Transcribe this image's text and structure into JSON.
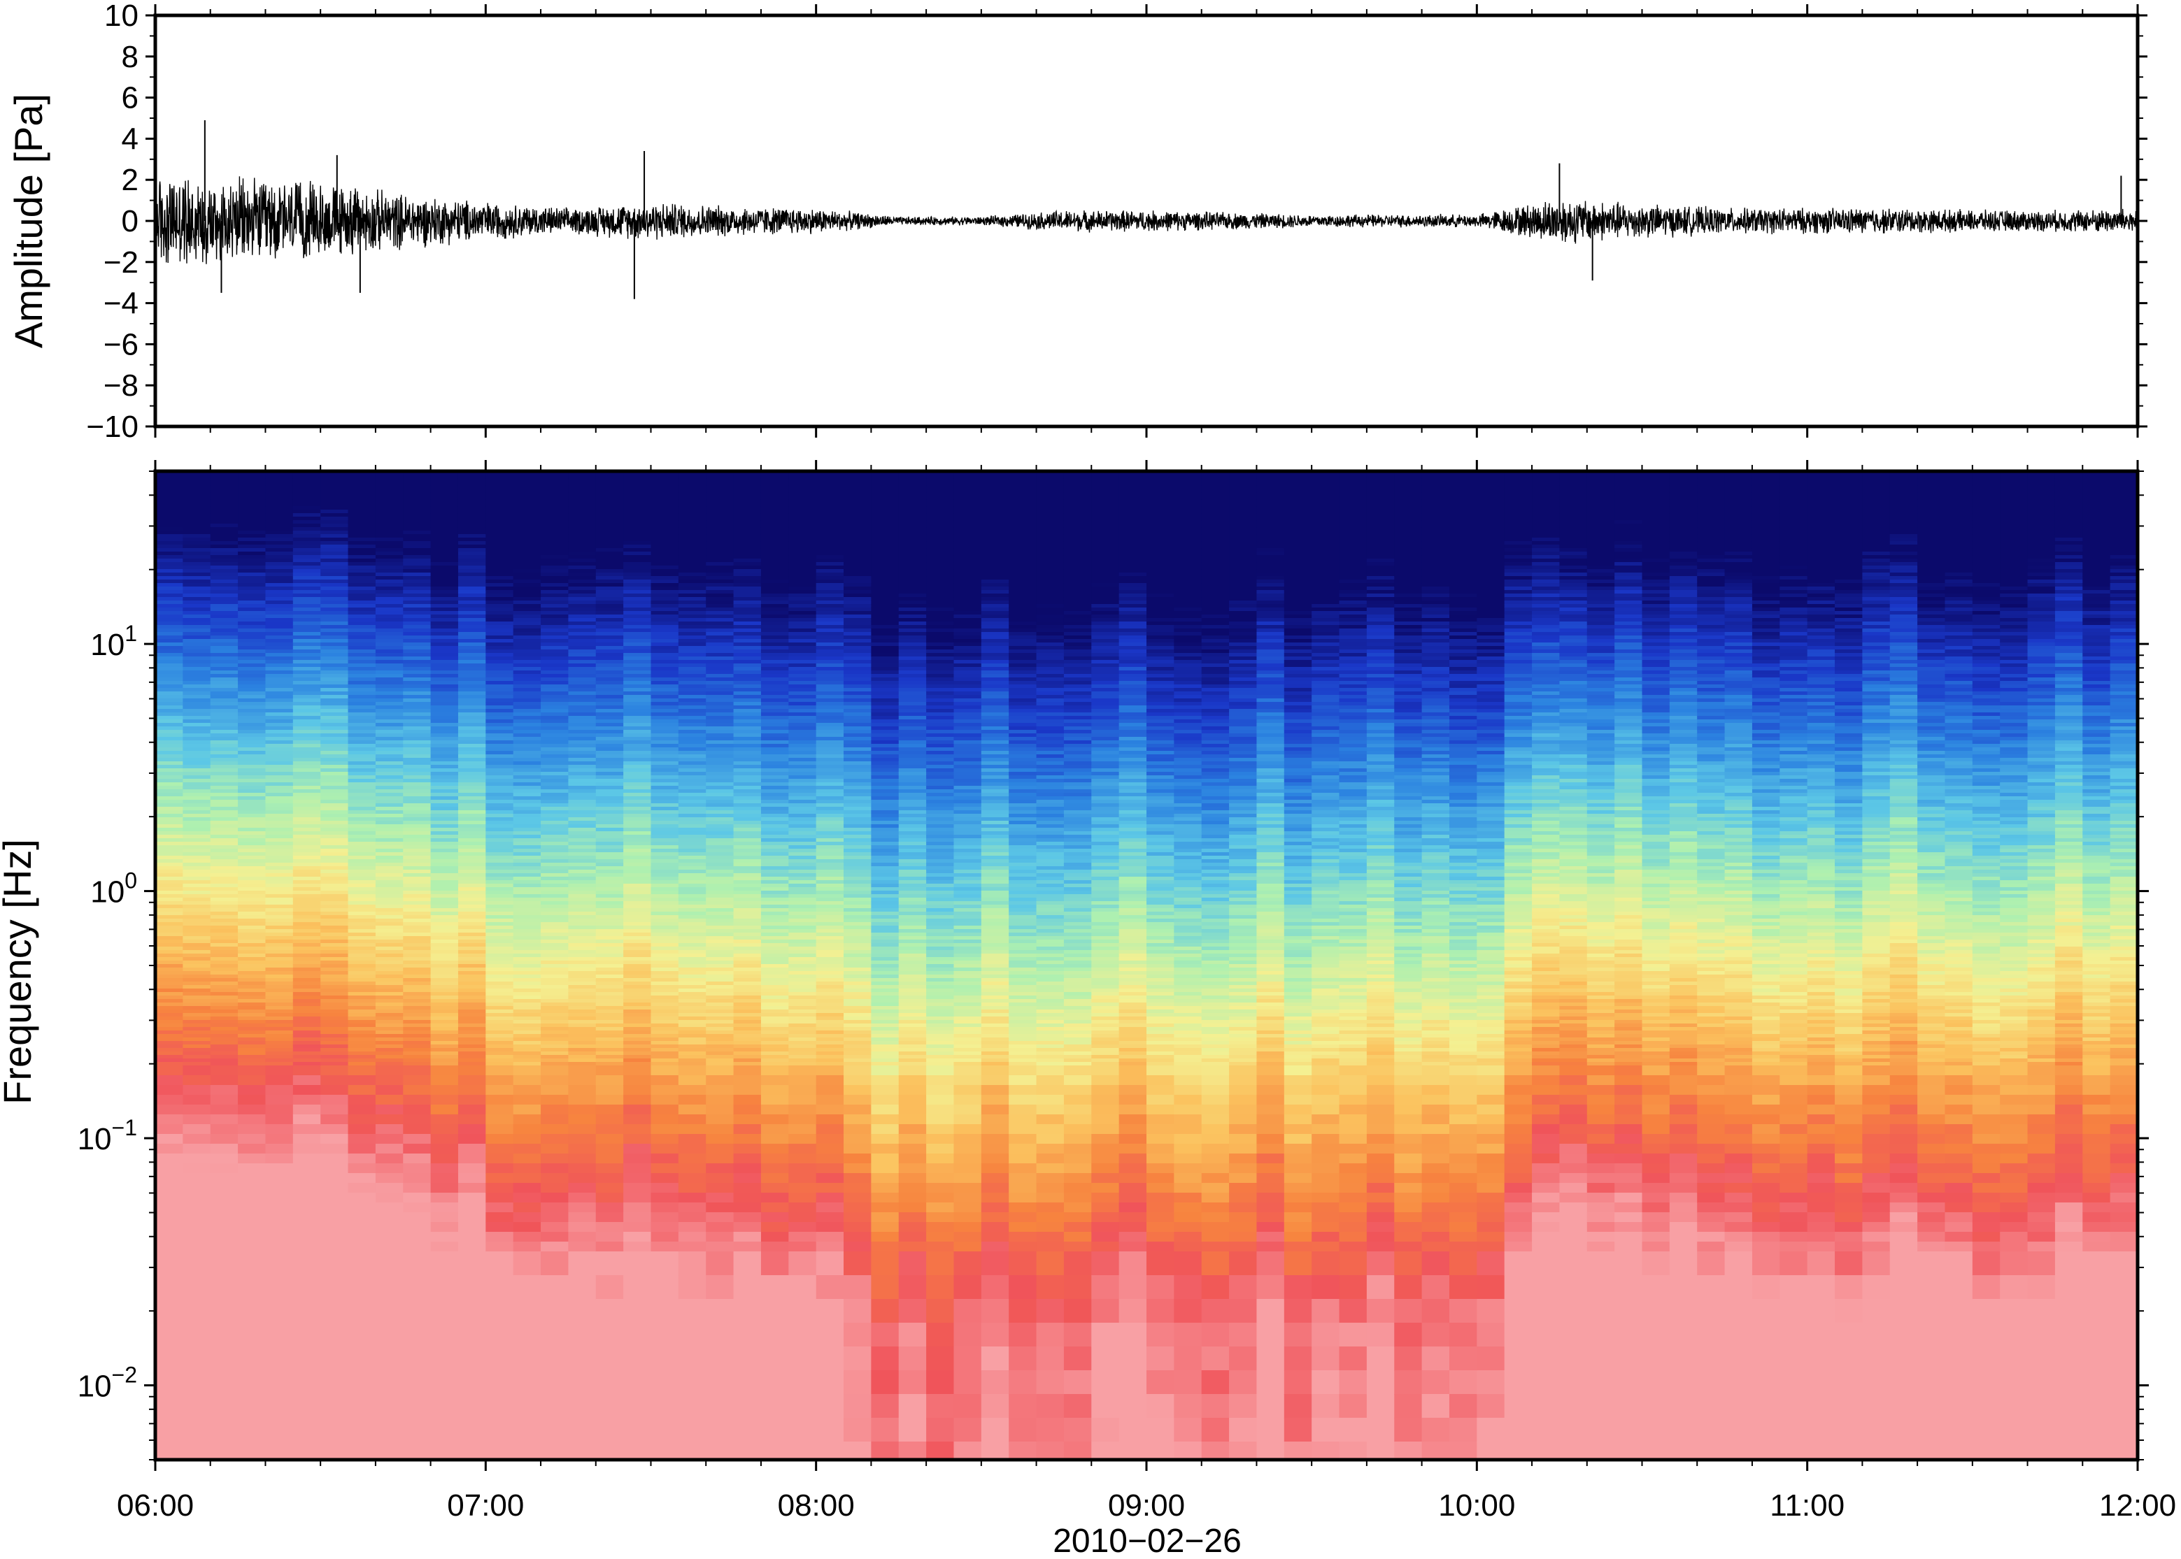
{
  "chart_data": [
    {
      "type": "line",
      "panel": "waveform",
      "ylabel": "Amplitude [Pa]",
      "ylim": [
        -10,
        10
      ],
      "y_ticks": [
        "10",
        "8",
        "6",
        "4",
        "2",
        "0",
        "−2",
        "−4",
        "−6",
        "−8",
        "−10"
      ],
      "y_tick_values": [
        10,
        8,
        6,
        4,
        2,
        0,
        -2,
        -4,
        -6,
        -8,
        -10
      ],
      "x_range": [
        "06:00",
        "12:00"
      ],
      "series": [
        {
          "x_hours": [
            6.0,
            6.25,
            6.5,
            6.75,
            7.0,
            7.25,
            7.5,
            7.75,
            8.0,
            8.25,
            8.5,
            8.75,
            9.0,
            9.25,
            9.5,
            9.75,
            10.0,
            10.25,
            10.5,
            10.75,
            11.0,
            11.25,
            11.5,
            11.75,
            12.0
          ],
          "envelope": [
            2.2,
            2.0,
            1.8,
            1.3,
            0.9,
            0.6,
            0.9,
            0.7,
            0.6,
            0.2,
            0.2,
            0.5,
            0.5,
            0.4,
            0.3,
            0.3,
            0.3,
            1.1,
            0.8,
            0.6,
            0.6,
            0.6,
            0.5,
            0.5,
            0.6
          ]
        }
      ],
      "spikes": [
        {
          "time": 6.15,
          "value": 4.9
        },
        {
          "time": 6.2,
          "value": -3.5
        },
        {
          "time": 6.55,
          "value": 3.2
        },
        {
          "time": 6.62,
          "value": -3.5
        },
        {
          "time": 7.45,
          "value": -3.8
        },
        {
          "time": 7.48,
          "value": 3.4
        },
        {
          "time": 10.25,
          "value": 2.8
        },
        {
          "time": 10.35,
          "value": -2.9
        },
        {
          "time": 11.95,
          "value": 2.2
        }
      ]
    },
    {
      "type": "heatmap",
      "panel": "spectrogram",
      "ylabel": "Frequency [Hz]",
      "yscale": "log",
      "ylim": [
        0.005,
        50
      ],
      "y_ticks": [
        {
          "base": "10",
          "exp": "1",
          "value": 10
        },
        {
          "base": "10",
          "exp": "0",
          "value": 1
        },
        {
          "base": "10",
          "exp": "−1",
          "value": 0.1
        },
        {
          "base": "10",
          "exp": "−2",
          "value": 0.01
        }
      ],
      "x_ticks": [
        "06:00",
        "07:00",
        "08:00",
        "09:00",
        "10:00",
        "11:00",
        "12:00"
      ],
      "x_tick_hours": [
        6,
        7,
        8,
        9,
        10,
        11,
        12
      ],
      "x_date_label": "2010−02−26",
      "colormap": [
        "#0b0a6b",
        "#1a37c8",
        "#2b82e0",
        "#5cc7e6",
        "#aef0b0",
        "#f4f092",
        "#fbc25e",
        "#f7843f",
        "#f0545a",
        "#f8a0a4"
      ],
      "activity_by_hour": {
        "hours": [
          6.0,
          6.25,
          6.5,
          6.75,
          7.0,
          7.25,
          7.5,
          7.75,
          8.0,
          8.25,
          8.5,
          8.75,
          9.0,
          9.25,
          9.5,
          9.75,
          10.0,
          10.25,
          10.5,
          10.75,
          11.0,
          11.25,
          11.5,
          11.75,
          12.0
        ],
        "level": [
          1.0,
          0.95,
          0.9,
          0.8,
          0.7,
          0.55,
          0.6,
          0.55,
          0.5,
          0.3,
          0.3,
          0.4,
          0.42,
          0.38,
          0.35,
          0.35,
          0.35,
          0.8,
          0.7,
          0.62,
          0.6,
          0.58,
          0.55,
          0.55,
          0.6
        ]
      }
    }
  ]
}
